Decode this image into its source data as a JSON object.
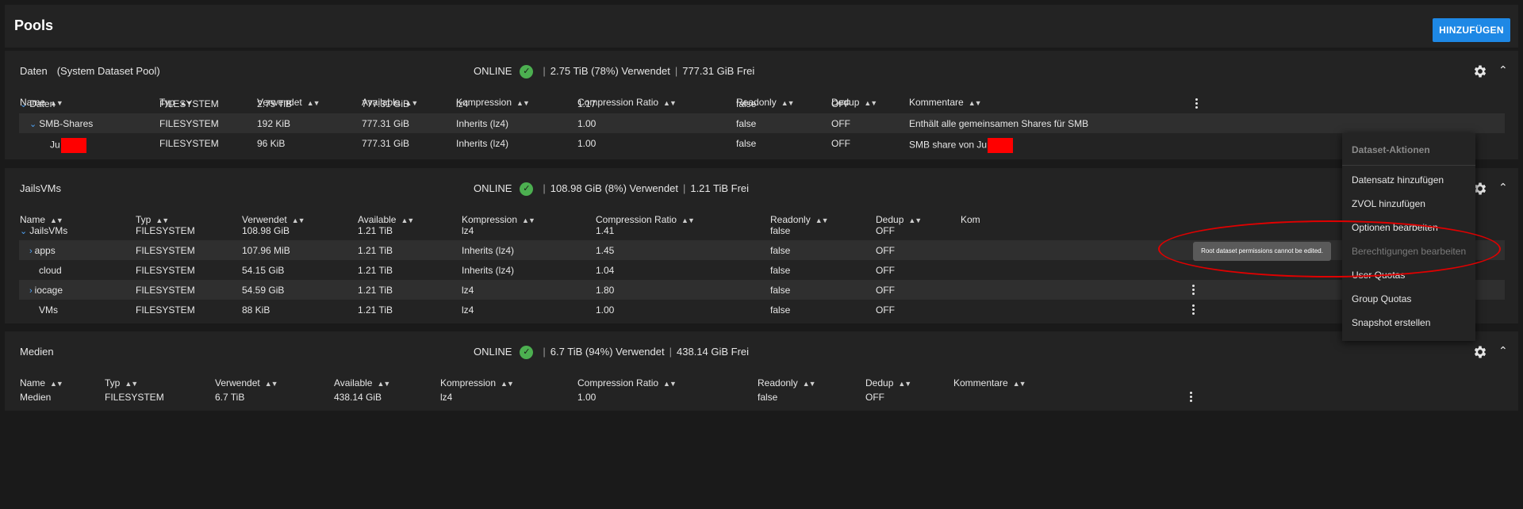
{
  "page": {
    "title": "Pools",
    "add_button": "HINZUFÜGEN"
  },
  "pools": [
    {
      "name": "Daten",
      "subtitle": "(System Dataset Pool)",
      "status": "ONLINE",
      "used": "2.75 TiB (78%) Verwendet",
      "free": "777.31 GiB Frei",
      "columns": [
        "Name",
        "Typ",
        "Verwendet",
        "Available",
        "Kompression",
        "Compression Ratio",
        "Readonly",
        "Dedup",
        "Kommentare"
      ],
      "rows": [
        {
          "name": "Daten",
          "toggle": "down",
          "indent": 0,
          "redacted": false,
          "typ": "FILESYSTEM",
          "verwendet": "2.75 TiB",
          "available": "777.31 GiB",
          "kompression": "lz4",
          "ratio": "1.17",
          "readonly": "false",
          "dedup": "OFF",
          "kommentar": "",
          "kommentar_redacted": false,
          "kebab": true
        },
        {
          "name": "SMB-Shares",
          "toggle": "down",
          "indent": 1,
          "redacted": false,
          "typ": "FILESYSTEM",
          "verwendet": "192 KiB",
          "available": "777.31 GiB",
          "kompression": "Inherits (lz4)",
          "ratio": "1.00",
          "readonly": "false",
          "dedup": "OFF",
          "kommentar": "Enthält alle gemeinsamen Shares für SMB",
          "kommentar_redacted": false,
          "kebab": false
        },
        {
          "name": "Ju",
          "toggle": "none",
          "indent": 2,
          "redacted": true,
          "typ": "FILESYSTEM",
          "verwendet": "96 KiB",
          "available": "777.31 GiB",
          "kompression": "Inherits (lz4)",
          "ratio": "1.00",
          "readonly": "false",
          "dedup": "OFF",
          "kommentar": "SMB share von Ju",
          "kommentar_redacted": true,
          "kebab": false
        }
      ]
    },
    {
      "name": "JailsVMs",
      "subtitle": "",
      "status": "ONLINE",
      "used": "108.98 GiB (8%) Verwendet",
      "free": "1.21 TiB Frei",
      "columns": [
        "Name",
        "Typ",
        "Verwendet",
        "Available",
        "Kompression",
        "Compression Ratio",
        "Readonly",
        "Dedup",
        "Kom"
      ],
      "rows": [
        {
          "name": "JailsVMs",
          "toggle": "down",
          "indent": 0,
          "redacted": false,
          "typ": "FILESYSTEM",
          "verwendet": "108.98 GiB",
          "available": "1.21 TiB",
          "kompression": "lz4",
          "ratio": "1.41",
          "readonly": "false",
          "dedup": "OFF",
          "kommentar": "",
          "kommentar_redacted": false,
          "kebab": false
        },
        {
          "name": "apps",
          "toggle": "right",
          "indent": 1,
          "redacted": false,
          "typ": "FILESYSTEM",
          "verwendet": "107.96 MiB",
          "available": "1.21 TiB",
          "kompression": "Inherits (lz4)",
          "ratio": "1.45",
          "readonly": "false",
          "dedup": "OFF",
          "kommentar": "",
          "kommentar_redacted": false,
          "kebab": false
        },
        {
          "name": "cloud",
          "toggle": "none",
          "indent": 1,
          "redacted": false,
          "typ": "FILESYSTEM",
          "verwendet": "54.15 GiB",
          "available": "1.21 TiB",
          "kompression": "Inherits (lz4)",
          "ratio": "1.04",
          "readonly": "false",
          "dedup": "OFF",
          "kommentar": "",
          "kommentar_redacted": false,
          "kebab": false
        },
        {
          "name": "iocage",
          "toggle": "right",
          "indent": 1,
          "redacted": false,
          "typ": "FILESYSTEM",
          "verwendet": "54.59 GiB",
          "available": "1.21 TiB",
          "kompression": "lz4",
          "ratio": "1.80",
          "readonly": "false",
          "dedup": "OFF",
          "kommentar": "",
          "kommentar_redacted": false,
          "kebab": true
        },
        {
          "name": "VMs",
          "toggle": "none",
          "indent": 1,
          "redacted": false,
          "typ": "FILESYSTEM",
          "verwendet": "88 KiB",
          "available": "1.21 TiB",
          "kompression": "lz4",
          "ratio": "1.00",
          "readonly": "false",
          "dedup": "OFF",
          "kommentar": "",
          "kommentar_redacted": false,
          "kebab": true
        }
      ]
    },
    {
      "name": "Medien",
      "subtitle": "",
      "status": "ONLINE",
      "used": "6.7 TiB (94%) Verwendet",
      "free": "438.14 GiB Frei",
      "columns": [
        "Name",
        "Typ",
        "Verwendet",
        "Available",
        "Kompression",
        "Compression Ratio",
        "Readonly",
        "Dedup",
        "Kommentare"
      ],
      "rows": [
        {
          "name": "Medien",
          "toggle": "none",
          "indent": 0,
          "redacted": false,
          "typ": "FILESYSTEM",
          "verwendet": "6.7 TiB",
          "available": "438.14 GiB",
          "kompression": "lz4",
          "ratio": "1.00",
          "readonly": "false",
          "dedup": "OFF",
          "kommentar": "",
          "kommentar_redacted": false,
          "kebab": true
        }
      ]
    }
  ],
  "menu": {
    "title": "Dataset-Aktionen",
    "items": [
      {
        "label": "Datensatz hinzufügen",
        "disabled": false
      },
      {
        "label": "ZVOL hinzufügen",
        "disabled": false
      },
      {
        "label": "Optionen bearbeiten",
        "disabled": false
      },
      {
        "label": "Berechtigungen bearbeiten",
        "disabled": true
      },
      {
        "label": "User Quotas",
        "disabled": false
      },
      {
        "label": "Group Quotas",
        "disabled": false
      },
      {
        "label": "Snapshot erstellen",
        "disabled": false
      }
    ]
  },
  "tooltip": "Root dataset permissions cannot be edited.",
  "colors": {
    "accent": "#1e88e5",
    "online": "#4caf50",
    "annotation": "#e00000",
    "redaction": "#ff0000"
  }
}
